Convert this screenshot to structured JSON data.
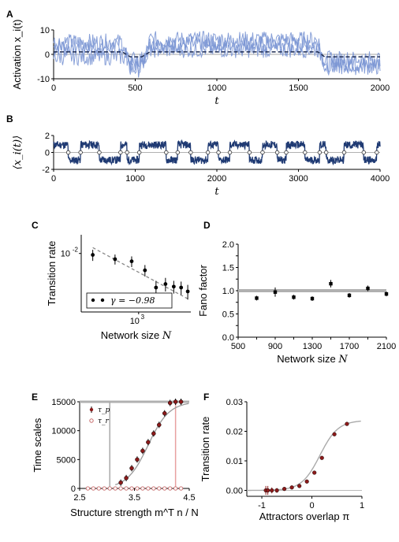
{
  "chart_data": [
    {
      "panel": "A",
      "type": "line",
      "ylabel": "Activation x_i(t)",
      "xlabel": "t",
      "xlim": [
        0,
        2000
      ],
      "ylim": [
        -10,
        10
      ],
      "xticks": [
        "0",
        "500",
        "1000",
        "1500",
        "2000"
      ],
      "yticks": [
        "-10",
        "0",
        "10"
      ],
      "series": [
        {
          "values": [
            {
              "x": 0,
              "y": 3
            },
            {
              "x": 420,
              "y": 3
            },
            {
              "x": 470,
              "y": -4
            },
            {
              "x": 540,
              "y": -4
            },
            {
              "x": 590,
              "y": 4
            },
            {
              "x": 1620,
              "y": 4
            },
            {
              "x": 1660,
              "y": -4
            },
            {
              "x": 2000,
              "y": -4
            }
          ]
        },
        {
          "values": [
            {
              "x": 0,
              "y": 5
            },
            {
              "x": 420,
              "y": 5
            },
            {
              "x": 470,
              "y": -6
            },
            {
              "x": 540,
              "y": -6
            },
            {
              "x": 590,
              "y": 6
            },
            {
              "x": 1620,
              "y": 6
            },
            {
              "x": 1660,
              "y": -5
            },
            {
              "x": 2000,
              "y": -5
            }
          ]
        },
        {
          "values": [
            {
              "x": 0,
              "y": -1
            },
            {
              "x": 420,
              "y": -1
            },
            {
              "x": 470,
              "y": -2
            },
            {
              "x": 540,
              "y": -2
            },
            {
              "x": 590,
              "y": 2
            },
            {
              "x": 1620,
              "y": 2
            },
            {
              "x": 1660,
              "y": -2
            },
            {
              "x": 2000,
              "y": -2
            }
          ]
        }
      ],
      "mean": [
        {
          "x": 0,
          "y": 1
        },
        {
          "x": 420,
          "y": 1
        },
        {
          "x": 470,
          "y": -1
        },
        {
          "x": 540,
          "y": -1
        },
        {
          "x": 590,
          "y": 1
        },
        {
          "x": 1620,
          "y": 1
        },
        {
          "x": 1660,
          "y": -1
        },
        {
          "x": 2000,
          "y": -1
        }
      ],
      "colors": {
        "traces": "#7b96d4",
        "mean": "#1c2a50"
      }
    },
    {
      "panel": "B",
      "type": "line",
      "ylabel": "⟨x_i(t)⟩",
      "xlabel": "t",
      "xlim": [
        0,
        4000
      ],
      "ylim": [
        -2,
        2
      ],
      "xticks": [
        "0",
        "1000",
        "2000",
        "3000",
        "4000"
      ],
      "yticks": [
        "-2",
        "0",
        "2"
      ],
      "switch_times": [
        180,
        330,
        560,
        820,
        900,
        1050,
        1380,
        1520,
        1680,
        1890,
        2020,
        2160,
        2400,
        2560,
        2740,
        2850,
        3080,
        3260,
        3340,
        3560,
        3800,
        3960
      ],
      "colors": {
        "line": "#1f3a73",
        "markers": "#ffffff"
      }
    },
    {
      "panel": "C",
      "type": "scatter",
      "xlabel": "Network size N",
      "ylabel": "Transition rate",
      "xscale": "log",
      "yscale": "log",
      "xlim": [
        420,
        2200
      ],
      "ylim": [
        0.0019,
        0.017
      ],
      "xticks": [
        "10^3"
      ],
      "yticks": [
        "10^-2"
      ],
      "x": [
        500,
        700,
        900,
        1100,
        1300,
        1500,
        1700,
        1900,
        2100
      ],
      "values": [
        0.0096,
        0.0085,
        0.008,
        0.0062,
        0.0038,
        0.0042,
        0.0039,
        0.0038,
        0.0034
      ],
      "errors": [
        0.0015,
        0.0012,
        0.0012,
        0.001,
        0.0008,
        0.0008,
        0.0007,
        0.0007,
        0.0007
      ],
      "fit": {
        "gamma": -0.98,
        "label": "γ = −0.98",
        "from": {
          "x": 500,
          "y": 0.0118
        },
        "to": {
          "x": 2150,
          "y": 0.0027
        }
      }
    },
    {
      "panel": "D",
      "type": "scatter",
      "xlabel": "Network size N",
      "ylabel": "Fano factor",
      "xlim": [
        500,
        2100
      ],
      "ylim": [
        0.0,
        2.0
      ],
      "xticks": [
        "500",
        "700",
        "900",
        "1100",
        "1300",
        "1500",
        "1700",
        "1900",
        "2100"
      ],
      "yticks": [
        "0.0",
        "0.25",
        "0.5",
        "0.75",
        "1.0",
        "1.25",
        "1.5",
        "1.75",
        "2.0"
      ],
      "x": [
        700,
        900,
        1100,
        1300,
        1500,
        1700,
        1900,
        2100
      ],
      "values": [
        0.84,
        0.97,
        0.86,
        0.83,
        1.15,
        0.9,
        1.05,
        0.93
      ],
      "errors": [
        0.05,
        0.1,
        0.05,
        0.05,
        0.08,
        0.05,
        0.06,
        0.05
      ],
      "reference": 1.0
    },
    {
      "panel": "E",
      "type": "scatter",
      "xlabel": "Structure strength m^T n / N",
      "ylabel": "Time scales",
      "xlim": [
        2.5,
        4.5
      ],
      "ylim": [
        0,
        15000
      ],
      "xticks": [
        "2.5",
        "3.5",
        "4.5"
      ],
      "yticks": [
        "0",
        "5000",
        "10000",
        "15000"
      ],
      "ceiling": 15000,
      "vlines": [
        3.05,
        4.25
      ],
      "series": [
        {
          "name": "τ_p",
          "x": [
            3.25,
            3.35,
            3.45,
            3.55,
            3.65,
            3.75,
            3.85,
            3.95,
            4.05,
            4.15,
            4.25,
            4.35
          ],
          "values": [
            1000,
            1800,
            3500,
            5000,
            6500,
            8000,
            9500,
            11000,
            13000,
            14800,
            15000,
            15000
          ]
        },
        {
          "name": "τ_r",
          "x": [
            2.65,
            2.75,
            2.85,
            2.95,
            3.05,
            3.15,
            3.25,
            3.35,
            3.45,
            3.55,
            3.65,
            3.75,
            3.85,
            3.95,
            4.05,
            4.15,
            4.25,
            4.35
          ],
          "values": [
            0,
            0,
            0,
            0,
            0,
            0,
            0,
            0,
            0,
            0,
            0,
            0,
            0,
            0,
            0,
            0,
            0,
            0
          ]
        }
      ]
    },
    {
      "panel": "F",
      "type": "scatter",
      "xlabel": "Attractors overlap π",
      "ylabel": "Transition rate",
      "xlim": [
        -1.3,
        1.0
      ],
      "ylim": [
        -0.002,
        0.03
      ],
      "xticks": [
        "-1",
        "0",
        "1"
      ],
      "yticks": [
        "0.00",
        "0.01",
        "0.02",
        "0.03"
      ],
      "x": [
        -0.92,
        -0.88,
        -0.8,
        -0.7,
        -0.55,
        -0.4,
        -0.25,
        -0.1,
        0.05,
        0.2,
        0.45,
        0.7
      ],
      "values": [
        0.0,
        0.0,
        0.0,
        0.0,
        0.0005,
        0.001,
        0.0015,
        0.003,
        0.006,
        0.011,
        0.019,
        0.0225
      ],
      "errors": [
        0.0015,
        0.0015,
        0.001,
        0.0008,
        0.0003,
        0.0003,
        0.0003,
        0.0003,
        0.0003,
        0.0003,
        0.0003,
        0.0003
      ]
    }
  ],
  "colors": {
    "marker_dark_red": "#8b1a1a",
    "fit_gray": "#aaaaaa",
    "black": "#000000"
  }
}
